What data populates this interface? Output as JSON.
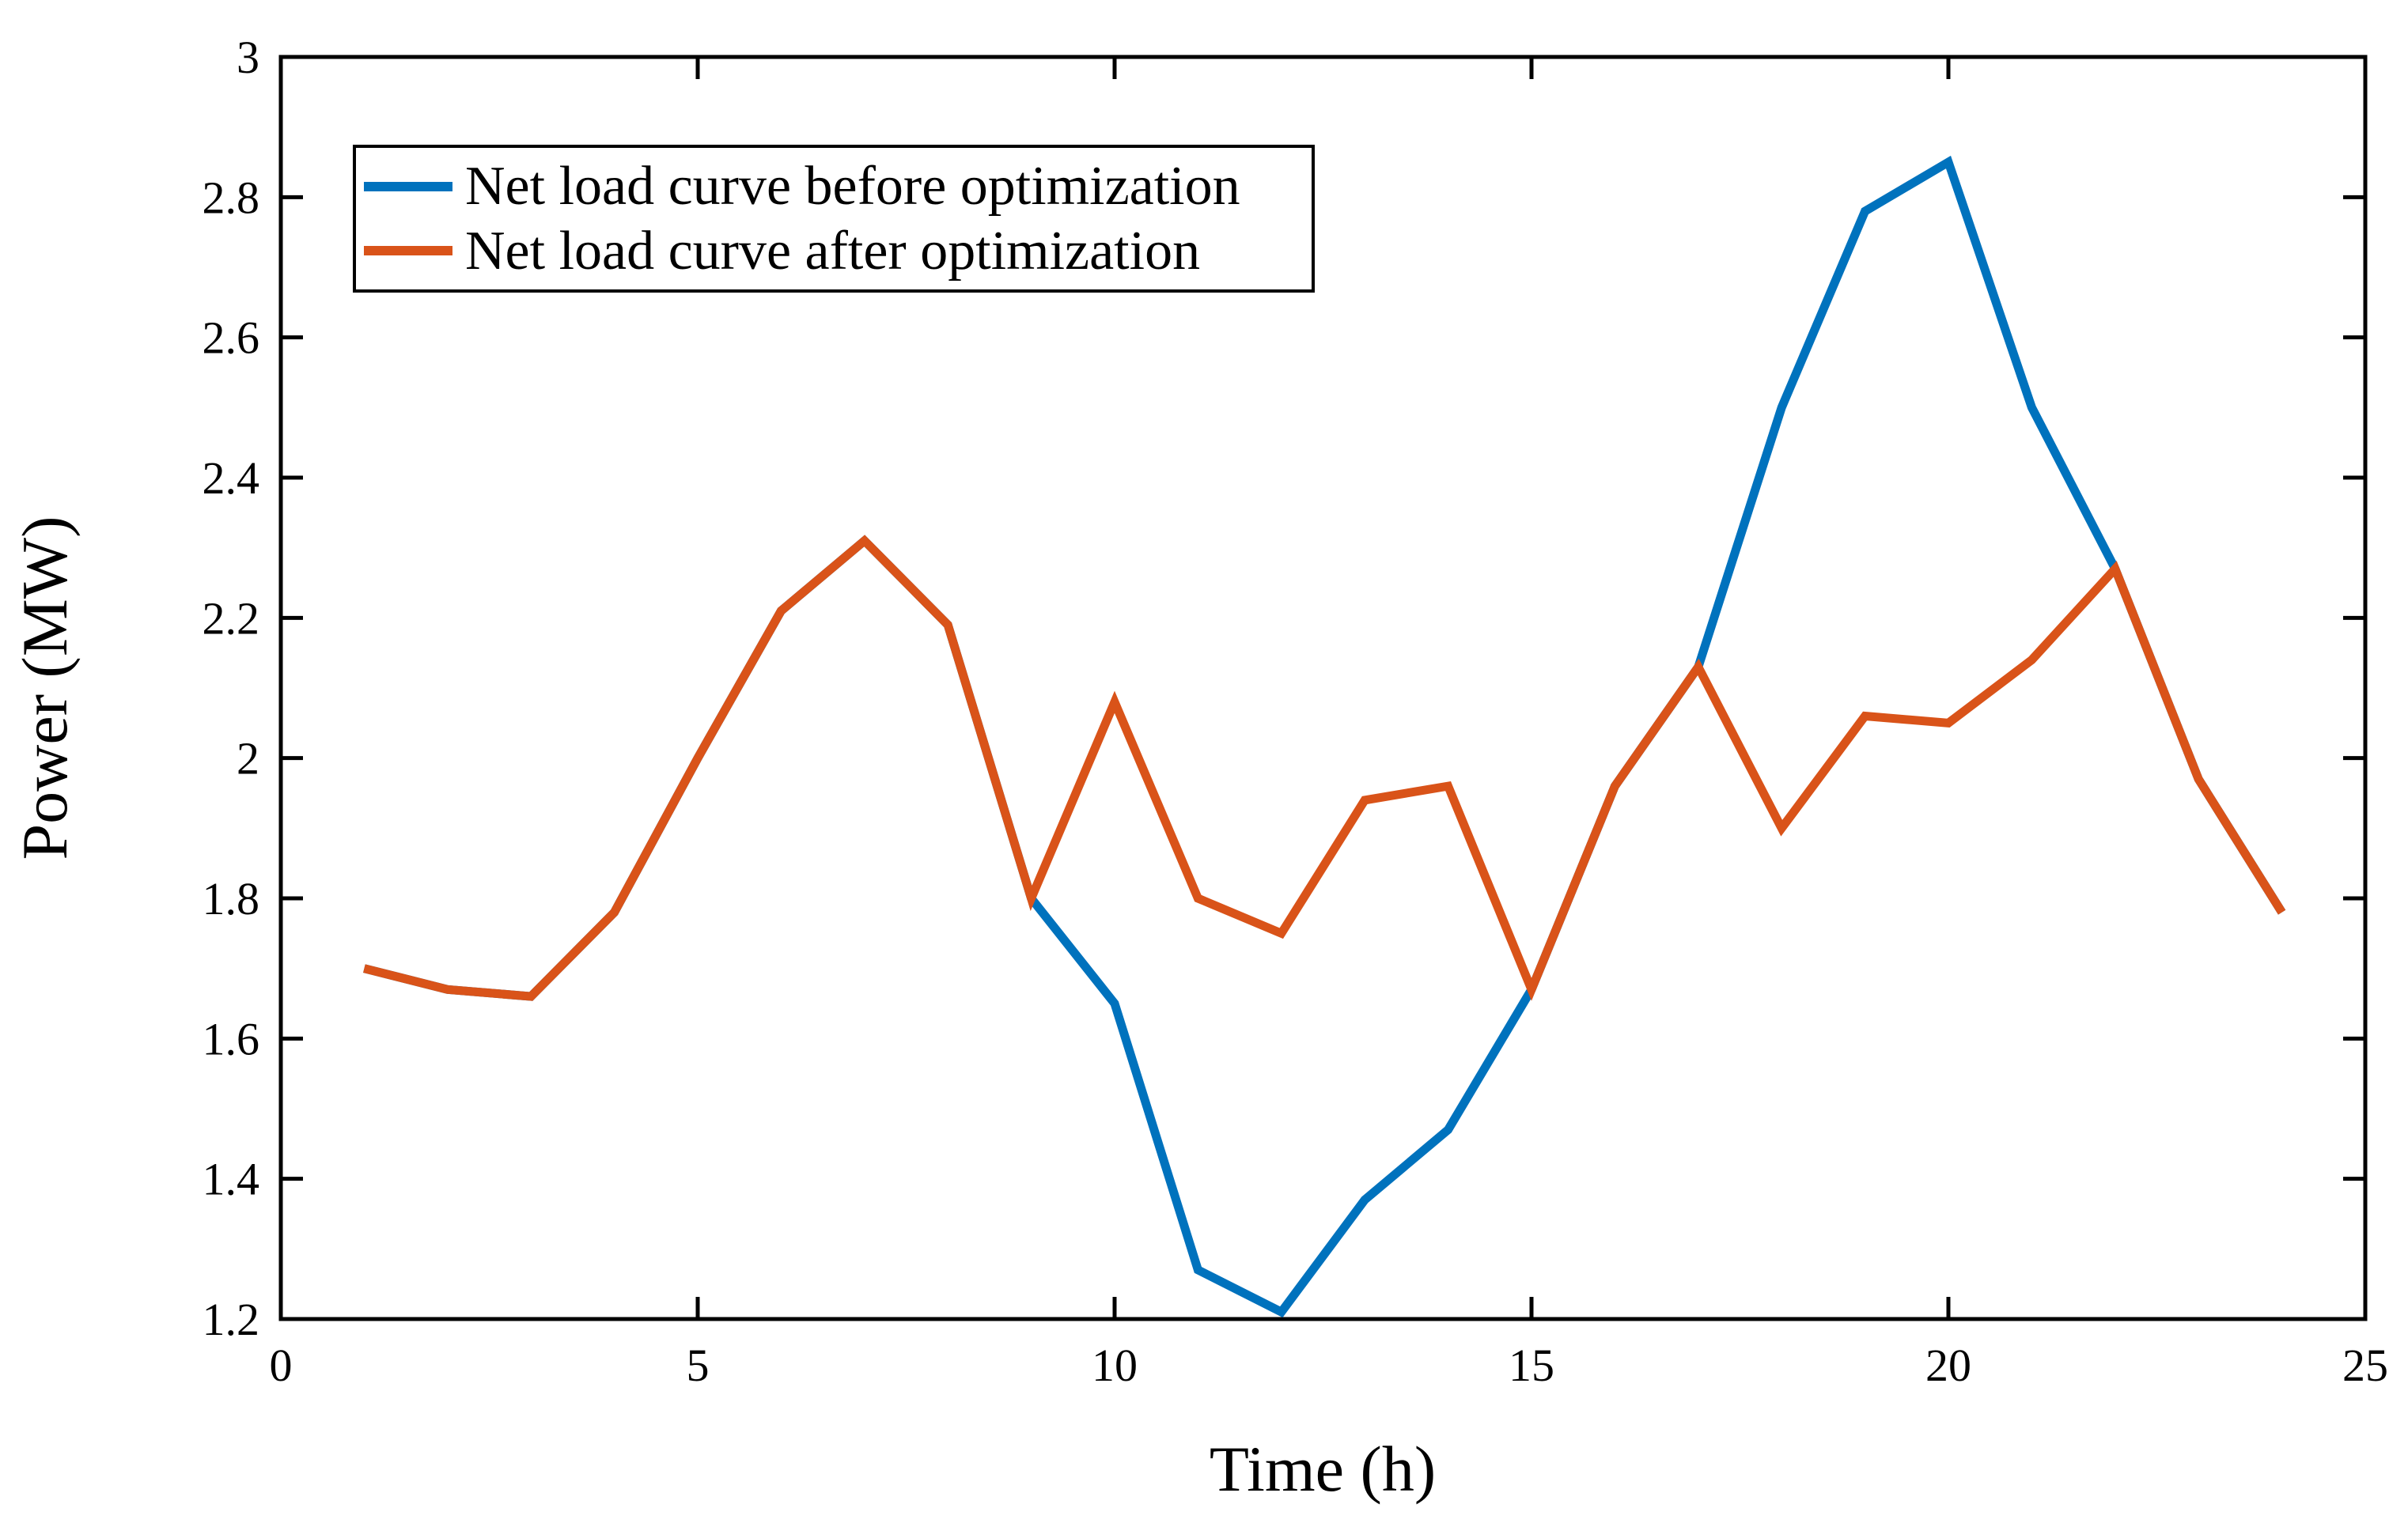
{
  "figure": {
    "background": "#ffffff",
    "axis_color": "#000000"
  },
  "chart_data": {
    "type": "line",
    "title": "",
    "xlabel": "Time (h)",
    "ylabel": "Power (MW)",
    "xlim": [
      0,
      25
    ],
    "ylim": [
      1.2,
      3
    ],
    "x_ticks": [
      0,
      5,
      10,
      15,
      20,
      25
    ],
    "y_ticks": [
      1.2,
      1.4,
      1.6,
      1.8,
      2,
      2.2,
      2.4,
      2.6,
      2.8,
      3
    ],
    "grid": false,
    "legend_position": "top-left",
    "x": [
      1,
      2,
      3,
      4,
      5,
      6,
      7,
      8,
      9,
      10,
      11,
      12,
      13,
      14,
      15,
      16,
      17,
      18,
      19,
      20,
      21,
      22,
      23,
      24
    ],
    "series": [
      {
        "name": "Net load curve before optimization",
        "color": "#0072BD",
        "values": [
          1.7,
          1.67,
          1.66,
          1.78,
          2.0,
          2.21,
          2.31,
          2.19,
          1.8,
          1.65,
          1.27,
          1.21,
          1.37,
          1.47,
          1.67,
          1.96,
          2.13,
          2.5,
          2.78,
          2.85,
          2.5,
          2.27,
          1.97,
          1.78
        ]
      },
      {
        "name": "Net load curve after optimization",
        "color": "#D95319",
        "values": [
          1.7,
          1.67,
          1.66,
          1.78,
          2.0,
          2.21,
          2.31,
          2.19,
          1.8,
          2.08,
          1.8,
          1.75,
          1.94,
          1.96,
          1.67,
          1.96,
          2.13,
          1.9,
          2.06,
          2.05,
          2.14,
          2.27,
          1.97,
          1.78
        ]
      }
    ]
  }
}
